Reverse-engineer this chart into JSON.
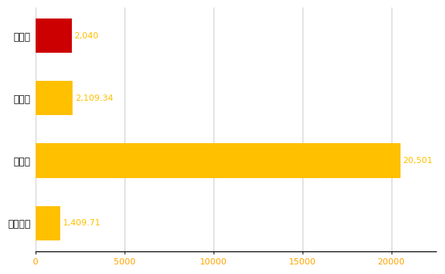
{
  "categories": [
    "秋葉区",
    "県平均",
    "県最大",
    "全国平均"
  ],
  "values": [
    2040,
    2109.34,
    20501,
    1409.71
  ],
  "bar_colors": [
    "#cc0000",
    "#ffc000",
    "#ffc000",
    "#ffc000"
  ],
  "value_labels": [
    "2,040",
    "2,109.34",
    "20,501",
    "1,409.71"
  ],
  "xlim": [
    0,
    22500
  ],
  "xticks": [
    0,
    5000,
    10000,
    15000,
    20000
  ],
  "background_color": "#ffffff",
  "grid_color": "#cccccc",
  "label_color": "#ffc000",
  "bar_height": 0.55,
  "tick_label_color": "#ffa500",
  "tick_label_fontsize": 9,
  "ylabel_fontsize": 10
}
